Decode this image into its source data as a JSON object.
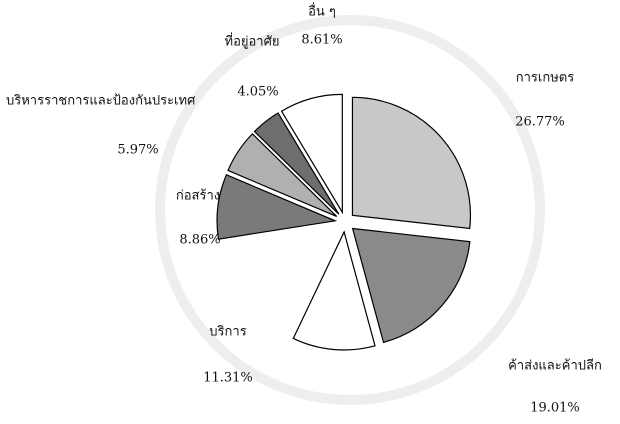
{
  "chart_data": {
    "type": "pie",
    "categories": [
      "การเกษตร",
      "ค้าส่งและค้าปลีก",
      "บริการ",
      "ก่อสร้าง",
      "บริหารราชการและป้องกันประเทศ",
      "ที่อยู่อาศัย",
      "อื่น ๆ"
    ],
    "values": [
      26.77,
      19.01,
      11.31,
      8.86,
      5.97,
      4.05,
      8.61
    ],
    "value_labels": [
      "26.77%",
      "19.01%",
      "11.31%",
      "8.86%",
      "5.97%",
      "4.05%",
      "8.61%"
    ],
    "colors": [
      "#c8c8c8",
      "#8a8a8a",
      "#ffffff",
      "#7a7a7a",
      "#b0b0b0",
      "#6e6e6e",
      "#ffffff"
    ]
  }
}
